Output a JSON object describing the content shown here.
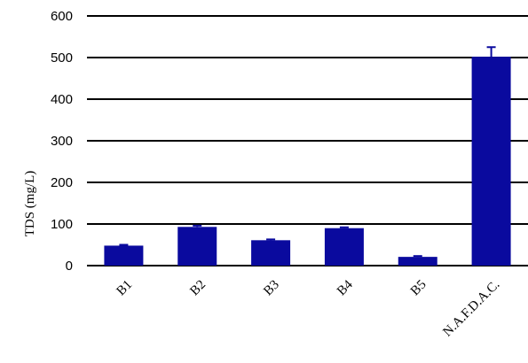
{
  "chart_data": {
    "type": "bar",
    "title": "",
    "xlabel": "",
    "ylabel": "TDS (mg/L)",
    "ylim": [
      0,
      600
    ],
    "yticks": [
      0,
      100,
      200,
      300,
      400,
      500,
      600
    ],
    "grid": true,
    "legend": "none",
    "bar_color": "#0a0a9e",
    "categories": [
      "B1",
      "B2",
      "B3",
      "B4",
      "B5",
      "N.A.F.D.A.C."
    ],
    "values": [
      48,
      93,
      61,
      90,
      21,
      502
    ],
    "errors": [
      2,
      3,
      2,
      2,
      2,
      23
    ]
  }
}
